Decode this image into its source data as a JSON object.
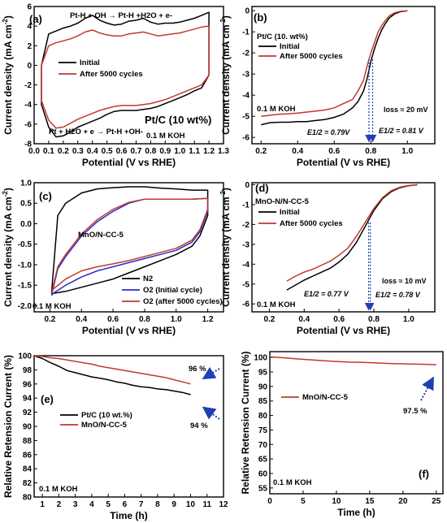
{
  "colors": {
    "initial": "#000000",
    "after": "#c0392b",
    "o2_initial": "#2b2bcc",
    "arrow": "#1f3fb5"
  },
  "chart_data": [
    {
      "id": "a",
      "type": "line",
      "panel_label": "(a)",
      "xlabel": "Potential (V vs RHE)",
      "ylabel": "Current density (mA cm-2)",
      "ylabel_main": "Current density (mA cm",
      "ylabel_sup": "-2",
      "ylabel_end": ")",
      "xlim": [
        0.0,
        1.3
      ],
      "ylim": [
        -8,
        6
      ],
      "xticks": [
        "0.0",
        "0.1",
        "0.2",
        "0.3",
        "0.4",
        "0.5",
        "0.6",
        "0.7",
        "0.8",
        "0.9",
        "1.0",
        "1.1",
        "1.2",
        "1.3"
      ],
      "yticks": [
        "-8",
        "-6",
        "-4",
        "-2",
        "0",
        "2",
        "4",
        "6"
      ],
      "annotations": [
        "Pt-H + OH → Pt-H +H2O + e-",
        "Pt + H2O + e → Pt-H +OH-",
        "Pt/C (10 wt%)",
        "0.1 M KOH"
      ],
      "legend": [
        "Initial",
        "After 5000 cycles"
      ],
      "series": [
        {
          "name": "Initial",
          "color": "#000000",
          "x": [
            0.05,
            0.1,
            0.15,
            0.2,
            0.25,
            0.3,
            0.35,
            0.4,
            0.45,
            0.5,
            0.55,
            0.6,
            0.65,
            0.7,
            0.75,
            0.8,
            0.85,
            0.9,
            0.95,
            1.0,
            1.05,
            1.1,
            1.15,
            1.2,
            1.2,
            1.15,
            1.1,
            1.05,
            1.0,
            0.95,
            0.9,
            0.85,
            0.8,
            0.75,
            0.7,
            0.65,
            0.6,
            0.55,
            0.5,
            0.45,
            0.4,
            0.35,
            0.3,
            0.25,
            0.2,
            0.15,
            0.1,
            0.05,
            0.05
          ],
          "y": [
            0.0,
            3.2,
            3.5,
            3.8,
            4.0,
            4.3,
            4.8,
            5.1,
            4.6,
            4.3,
            4.1,
            4.2,
            4.5,
            4.6,
            4.8,
            4.4,
            4.2,
            4.3,
            4.3,
            4.4,
            4.6,
            4.8,
            5.1,
            5.4,
            -1.0,
            -2.3,
            -2.6,
            -3.0,
            -3.3,
            -3.6,
            -3.9,
            -4.2,
            -4.4,
            -4.5,
            -4.6,
            -4.6,
            -4.6,
            -4.7,
            -5.0,
            -5.4,
            -5.7,
            -6.0,
            -6.3,
            -6.8,
            -7.2,
            -7.3,
            -6.3,
            -4.0,
            0.0
          ]
        },
        {
          "name": "After 5000 cycles",
          "color": "#c0392b",
          "x": [
            0.05,
            0.1,
            0.15,
            0.2,
            0.25,
            0.3,
            0.35,
            0.4,
            0.45,
            0.5,
            0.55,
            0.6,
            0.65,
            0.7,
            0.75,
            0.8,
            0.85,
            0.9,
            0.95,
            1.0,
            1.05,
            1.1,
            1.15,
            1.2,
            1.2,
            1.15,
            1.1,
            1.05,
            1.0,
            0.95,
            0.9,
            0.85,
            0.8,
            0.75,
            0.7,
            0.65,
            0.6,
            0.55,
            0.5,
            0.45,
            0.4,
            0.35,
            0.3,
            0.25,
            0.2,
            0.15,
            0.1,
            0.05,
            0.05
          ],
          "y": [
            0.0,
            2.0,
            2.3,
            2.5,
            2.7,
            3.0,
            3.4,
            3.6,
            3.3,
            3.1,
            3.0,
            3.0,
            3.2,
            3.3,
            3.4,
            3.2,
            3.0,
            3.1,
            3.2,
            3.3,
            3.5,
            3.7,
            3.9,
            4.0,
            -1.0,
            -2.0,
            -2.3,
            -2.6,
            -2.9,
            -3.2,
            -3.5,
            -3.7,
            -3.9,
            -4.0,
            -4.1,
            -4.1,
            -4.1,
            -4.2,
            -4.4,
            -4.6,
            -4.9,
            -5.2,
            -5.5,
            -5.9,
            -6.3,
            -6.4,
            -5.6,
            -3.6,
            0.0
          ]
        }
      ]
    },
    {
      "id": "b",
      "type": "line",
      "panel_label": "(b)",
      "xlabel": "Potential (V vs RHE)",
      "ylabel": "Current density (mA cm-2)",
      "ylabel_main": "Current density (mA cm",
      "ylabel_sup": "-2",
      "ylabel_end": ")",
      "xlim": [
        0.15,
        1.15
      ],
      "ylim": [
        -6.3,
        0.2
      ],
      "xticks": [
        "0.2",
        "0.4",
        "0.6",
        "0.8",
        "1.0"
      ],
      "yticks": [
        "0",
        "-1",
        "-2",
        "-3",
        "-4",
        "-5",
        "-6"
      ],
      "annotations": [
        "Pt/C (10. wt%)",
        "0.1 M KOH",
        "loss ≈ 20 mV",
        "E1/2 = 0.79V",
        "E1/2 = 0.81 V"
      ],
      "legend": [
        "Initial",
        "After 5000 cycles"
      ],
      "series": [
        {
          "name": "Initial",
          "color": "#000000",
          "x": [
            0.2,
            0.25,
            0.3,
            0.35,
            0.4,
            0.45,
            0.5,
            0.55,
            0.6,
            0.65,
            0.7,
            0.73,
            0.76,
            0.78,
            0.8,
            0.82,
            0.84,
            0.86,
            0.88,
            0.9,
            0.93,
            0.96,
            1.0
          ],
          "y": [
            -5.4,
            -5.3,
            -5.28,
            -5.28,
            -5.25,
            -5.25,
            -5.2,
            -5.15,
            -5.05,
            -4.9,
            -4.6,
            -4.3,
            -3.8,
            -3.2,
            -2.4,
            -1.8,
            -1.3,
            -0.9,
            -0.6,
            -0.35,
            -0.15,
            -0.05,
            0.0
          ]
        },
        {
          "name": "After 5000 cycles",
          "color": "#c0392b",
          "x": [
            0.2,
            0.25,
            0.3,
            0.35,
            0.4,
            0.45,
            0.5,
            0.55,
            0.6,
            0.65,
            0.7,
            0.73,
            0.76,
            0.78,
            0.8,
            0.82,
            0.84,
            0.86,
            0.88,
            0.9,
            0.93,
            0.96,
            1.0
          ],
          "y": [
            -5.0,
            -4.95,
            -4.9,
            -4.88,
            -4.85,
            -4.8,
            -4.75,
            -4.7,
            -4.6,
            -4.4,
            -4.2,
            -3.8,
            -3.3,
            -2.6,
            -2.0,
            -1.5,
            -1.0,
            -0.7,
            -0.45,
            -0.25,
            -0.1,
            -0.03,
            0.0
          ]
        }
      ]
    },
    {
      "id": "c",
      "type": "line",
      "panel_label": "(c)",
      "xlabel": "Potential (V vs RHE)",
      "ylabel": "Current density (mA cm-2)",
      "ylabel_main": "Current density (mA cm",
      "ylabel_sup": "-2",
      "ylabel_end": ")",
      "xlim": [
        0.1,
        1.3
      ],
      "ylim": [
        -2.15,
        1.0
      ],
      "xticks": [
        "0.2",
        "0.4",
        "0.6",
        "0.8",
        "1.0",
        "1.2"
      ],
      "yticks": [
        "1.0",
        "0.5",
        "0.0",
        "-0.5",
        "-1.0",
        "-1.5",
        "-2.0"
      ],
      "annotations": [
        "MnO/N-CC-5",
        "0.1 M KOH"
      ],
      "legend": [
        "N2",
        "O2 (Initial cycle)",
        "O2 (after 5000 cycles)"
      ],
      "series": [
        {
          "name": "N2",
          "color": "#000000",
          "x": [
            0.21,
            0.25,
            0.3,
            0.4,
            0.5,
            0.6,
            0.7,
            0.8,
            0.9,
            1.0,
            1.1,
            1.2,
            1.2,
            1.15,
            1.1,
            1.0,
            0.9,
            0.8,
            0.7,
            0.6,
            0.5,
            0.4,
            0.3,
            0.22,
            0.21
          ],
          "y": [
            -1.7,
            0.2,
            0.5,
            0.75,
            0.85,
            0.88,
            0.9,
            0.9,
            0.87,
            0.85,
            0.82,
            0.82,
            0.2,
            -0.3,
            -0.55,
            -0.75,
            -0.9,
            -1.05,
            -1.2,
            -1.35,
            -1.45,
            -1.55,
            -1.65,
            -1.7,
            -1.7
          ]
        },
        {
          "name": "O2 (Initial cycle)",
          "color": "#2b2bcc",
          "x": [
            0.21,
            0.25,
            0.3,
            0.4,
            0.5,
            0.6,
            0.7,
            0.8,
            0.9,
            1.0,
            1.1,
            1.2,
            1.2,
            1.15,
            1.1,
            1.0,
            0.9,
            0.8,
            0.7,
            0.6,
            0.5,
            0.4,
            0.3,
            0.22,
            0.21
          ],
          "y": [
            -1.75,
            -1.1,
            -0.8,
            -0.3,
            0.05,
            0.3,
            0.5,
            0.6,
            0.6,
            0.6,
            0.6,
            0.62,
            0.3,
            -0.2,
            -0.45,
            -0.65,
            -0.75,
            -0.85,
            -0.95,
            -1.05,
            -1.15,
            -1.3,
            -1.5,
            -1.7,
            -1.75
          ]
        },
        {
          "name": "O2 (after 5000 cycles)",
          "color": "#c0392b",
          "x": [
            0.21,
            0.25,
            0.3,
            0.4,
            0.5,
            0.6,
            0.7,
            0.8,
            0.9,
            1.0,
            1.1,
            1.2,
            1.2,
            1.15,
            1.1,
            1.0,
            0.9,
            0.8,
            0.7,
            0.6,
            0.5,
            0.4,
            0.3,
            0.22,
            0.21
          ],
          "y": [
            -1.7,
            -1.05,
            -0.75,
            -0.25,
            0.1,
            0.35,
            0.52,
            0.6,
            0.6,
            0.6,
            0.6,
            0.62,
            0.35,
            -0.15,
            -0.4,
            -0.6,
            -0.7,
            -0.8,
            -0.9,
            -0.98,
            -1.05,
            -1.15,
            -1.35,
            -1.6,
            -1.7
          ]
        }
      ]
    },
    {
      "id": "d",
      "type": "line",
      "panel_label": "(d)",
      "xlabel": "Potential (V vs RHE)",
      "ylabel": "Current density (mA cm-2)",
      "ylabel_main": "Current density (mA cm",
      "ylabel_sup": "-2",
      "ylabel_end": ")",
      "xlim": [
        0.1,
        1.15
      ],
      "ylim": [
        -6.4,
        0.1
      ],
      "xticks": [
        "0.2",
        "0.4",
        "0.6",
        "0.8",
        "1.0"
      ],
      "yticks": [
        "0",
        "-1",
        "-2",
        "-3",
        "-4",
        "-5",
        "-6"
      ],
      "annotations": [
        "MnO-N/N-CC-5",
        "0.1 M KOH",
        "loss ≈ 10 mV",
        "E1/2 = 0.77 V",
        "E1/2 = 0.78 V"
      ],
      "legend": [
        "Initial",
        "After 5000 cycles"
      ],
      "series": [
        {
          "name": "Initial",
          "color": "#000000",
          "x": [
            0.3,
            0.35,
            0.4,
            0.45,
            0.5,
            0.55,
            0.6,
            0.65,
            0.7,
            0.75,
            0.8,
            0.85,
            0.9,
            0.95,
            1.0,
            1.05
          ],
          "y": [
            -5.3,
            -5.05,
            -4.8,
            -4.6,
            -4.4,
            -4.2,
            -3.9,
            -3.5,
            -2.9,
            -2.1,
            -1.3,
            -0.7,
            -0.35,
            -0.15,
            -0.05,
            0.0
          ]
        },
        {
          "name": "After 5000 cycles",
          "color": "#c0392b",
          "x": [
            0.3,
            0.35,
            0.4,
            0.45,
            0.5,
            0.55,
            0.6,
            0.65,
            0.7,
            0.75,
            0.8,
            0.85,
            0.9,
            0.95,
            1.0,
            1.05
          ],
          "y": [
            -4.85,
            -4.6,
            -4.4,
            -4.25,
            -4.05,
            -3.85,
            -3.55,
            -3.2,
            -2.6,
            -1.9,
            -1.2,
            -0.65,
            -0.3,
            -0.12,
            -0.04,
            0.0
          ]
        }
      ]
    },
    {
      "id": "e",
      "type": "line",
      "panel_label": "(e)",
      "xlabel": "Time (h)",
      "ylabel": "Relative Retension Current (%)",
      "xlim": [
        0.5,
        12
      ],
      "ylim": [
        80,
        100
      ],
      "xticks": [
        "1",
        "2",
        "3",
        "4",
        "5",
        "6",
        "7",
        "8",
        "9",
        "10",
        "11",
        "12"
      ],
      "yticks": [
        "80",
        "82",
        "84",
        "86",
        "88",
        "90",
        "92",
        "94",
        "96",
        "98",
        "100"
      ],
      "annotations": [
        "96 %",
        "94 %",
        "0.1 M KOH"
      ],
      "legend": [
        "Pt/C (10 wt.%)",
        "MnO/N-CC-5"
      ],
      "series": [
        {
          "name": "Pt/C (10 wt.%)",
          "color": "#000000",
          "x": [
            0.5,
            1,
            1.5,
            2,
            2.5,
            3,
            3.5,
            4,
            4.5,
            5,
            5.5,
            6,
            6.5,
            7,
            7.5,
            8,
            8.5,
            9,
            9.5,
            10
          ],
          "y": [
            100,
            99.6,
            99.0,
            98.5,
            97.9,
            97.6,
            97.3,
            97.0,
            96.8,
            96.6,
            96.3,
            96.1,
            95.8,
            95.6,
            95.5,
            95.3,
            95.2,
            95.0,
            94.8,
            94.5
          ]
        },
        {
          "name": "MnO/N-CC-5",
          "color": "#c0392b",
          "x": [
            0.5,
            1,
            1.5,
            2,
            2.5,
            3,
            3.5,
            4,
            4.5,
            5,
            5.5,
            6,
            6.5,
            7,
            7.5,
            8,
            8.5,
            9,
            9.5,
            10
          ],
          "y": [
            100,
            99.9,
            99.7,
            99.6,
            99.4,
            99.2,
            99.0,
            98.8,
            98.5,
            98.3,
            98.1,
            97.9,
            97.7,
            97.5,
            97.3,
            97.1,
            96.9,
            96.6,
            96.3,
            96.0
          ]
        }
      ]
    },
    {
      "id": "f",
      "type": "line",
      "panel_label": "(f)",
      "xlabel": "Time (h)",
      "ylabel": "Relative Retension Current (%)",
      "xlim": [
        0,
        26
      ],
      "ylim": [
        53,
        102
      ],
      "xticks": [
        "0",
        "5",
        "10",
        "15",
        "20",
        "25"
      ],
      "yticks": [
        "55",
        "60",
        "65",
        "70",
        "75",
        "80",
        "85",
        "90",
        "95",
        "100"
      ],
      "annotations": [
        "97.5 %",
        "0.1 M KOH"
      ],
      "legend": [
        "MnO/N-CC-5"
      ],
      "series": [
        {
          "name": "MnO/N-CC-5",
          "color": "#c0392b",
          "x": [
            0,
            2,
            4,
            6,
            8,
            10,
            12,
            14,
            16,
            18,
            20,
            22,
            24,
            25
          ],
          "y": [
            100.2,
            99.9,
            99.5,
            99.2,
            98.9,
            98.6,
            98.4,
            98.3,
            98.1,
            97.9,
            97.8,
            97.7,
            97.6,
            97.5
          ]
        }
      ]
    }
  ]
}
